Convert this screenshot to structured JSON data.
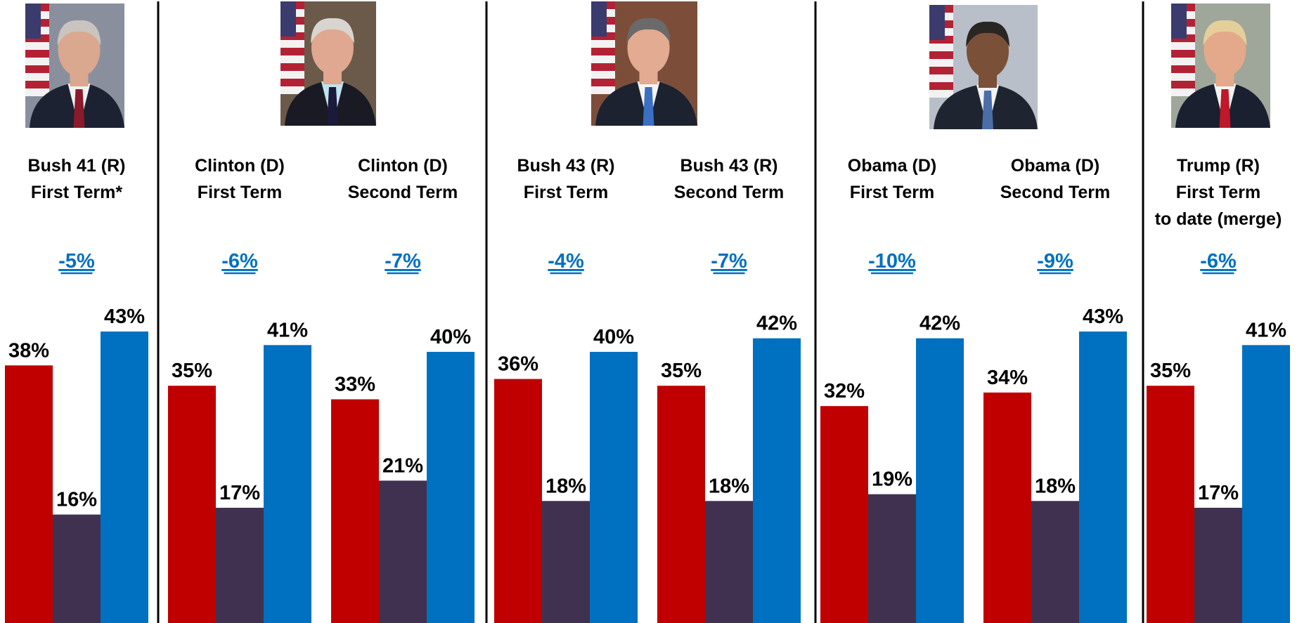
{
  "colors": {
    "series_1": "#C00000",
    "series_2": "#403151",
    "series_3": "#0070C0",
    "difference_text": "#0070C0",
    "divider": "#000000"
  },
  "presidents": [
    {
      "photo_icon": "portrait-bush-41-icon",
      "photo_colors": {
        "bg": "#8a8f9e",
        "suit": "#1d2233",
        "shirt": "#f1f1f1",
        "tie": "#8b1a2b",
        "skin": "#d9a88f",
        "hair": "#c9c4c0",
        "flag": true
      }
    },
    {
      "photo_icon": "portrait-clinton-icon",
      "photo_colors": {
        "bg": "#6b5a4a",
        "suit": "#1a1a24",
        "shirt": "#bfe3ef",
        "tie": "#1a1a3a",
        "skin": "#e0a890",
        "hair": "#d8d4d0",
        "flag": true
      }
    },
    {
      "photo_icon": "portrait-bush-43-icon",
      "photo_colors": {
        "bg": "#7c4e3a",
        "suit": "#1c2230",
        "shirt": "#f4f4f4",
        "tie": "#3b6fc4",
        "skin": "#e3ab92",
        "hair": "#6a6a6a",
        "flag": true
      }
    },
    {
      "photo_icon": "portrait-obama-icon",
      "photo_colors": {
        "bg": "#b8bfc9",
        "suit": "#1f2530",
        "shirt": "#f2f2f2",
        "tie": "#4a6ea8",
        "skin": "#7a5038",
        "hair": "#2a2624",
        "flag": true
      }
    },
    {
      "photo_icon": "portrait-trump-icon",
      "photo_colors": {
        "bg": "#9fa69a",
        "suit": "#1a2030",
        "shirt": "#f4f4f4",
        "tie": "#c0182a",
        "skin": "#e3a98a",
        "hair": "#e4cf9a",
        "flag": true
      }
    }
  ],
  "chart_data": {
    "type": "bar",
    "title": "",
    "xlabel": "",
    "ylabel": "",
    "ylim": [
      0,
      43
    ],
    "grid": false,
    "legend": "none",
    "groups": [
      {
        "label_lines": [
          "Bush 41 (R)",
          "First Term*"
        ],
        "difference": "-5%",
        "values": [
          38,
          16,
          43
        ],
        "value_labels": [
          "38%",
          "16%",
          "43%"
        ]
      },
      {
        "label_lines": [
          "Clinton (D)",
          "First Term"
        ],
        "difference": "-6%",
        "values": [
          35,
          17,
          41
        ],
        "value_labels": [
          "35%",
          "17%",
          "41%"
        ]
      },
      {
        "label_lines": [
          "Clinton (D)",
          "Second Term"
        ],
        "difference": "-7%",
        "values": [
          33,
          21,
          40
        ],
        "value_labels": [
          "33%",
          "21%",
          "40%"
        ]
      },
      {
        "label_lines": [
          "Bush 43 (R)",
          "First Term"
        ],
        "difference": "-4%",
        "values": [
          36,
          18,
          40
        ],
        "value_labels": [
          "36%",
          "18%",
          "40%"
        ]
      },
      {
        "label_lines": [
          "Bush 43 (R)",
          "Second Term"
        ],
        "difference": "-7%",
        "values": [
          35,
          18,
          42
        ],
        "value_labels": [
          "35%",
          "18%",
          "42%"
        ]
      },
      {
        "label_lines": [
          "Obama (D)",
          "First Term"
        ],
        "difference": "-10%",
        "values": [
          32,
          19,
          42
        ],
        "value_labels": [
          "32%",
          "19%",
          "42%"
        ]
      },
      {
        "label_lines": [
          "Obama (D)",
          "Second Term"
        ],
        "difference": "-9%",
        "values": [
          34,
          18,
          43
        ],
        "value_labels": [
          "34%",
          "18%",
          "43%"
        ]
      },
      {
        "label_lines": [
          "Trump (R)",
          "First Term",
          "to date (merge)"
        ],
        "difference": "-6%",
        "values": [
          35,
          17,
          41
        ],
        "value_labels": [
          "35%",
          "17%",
          "41%"
        ]
      }
    ]
  }
}
